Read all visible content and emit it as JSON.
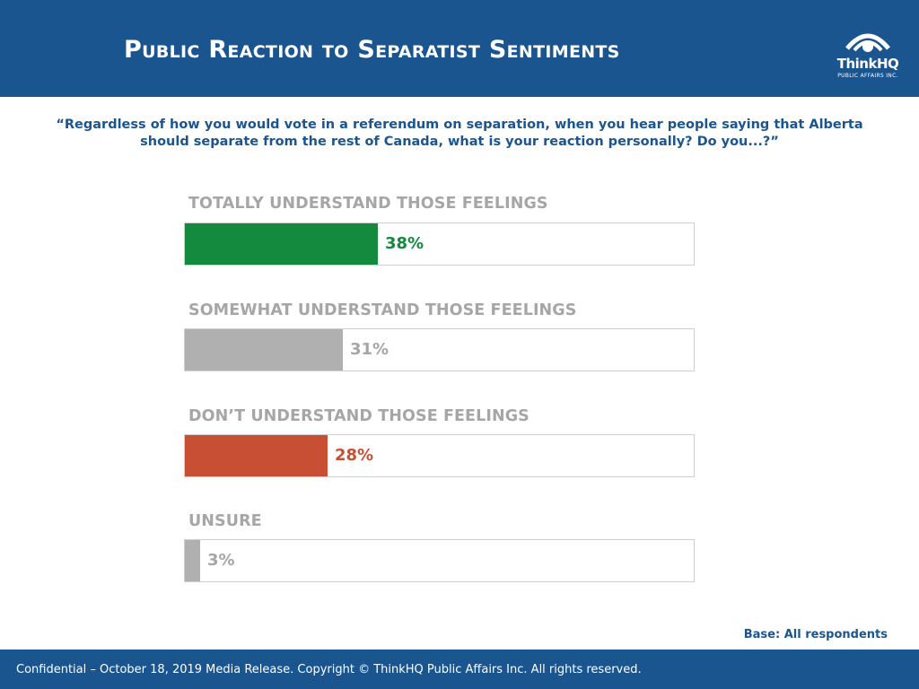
{
  "header": {
    "title": "Public Reaction to Separatist Sentiments",
    "logo_name": "ThinkHQ",
    "logo_sub": "PUBLIC AFFAIRS INC."
  },
  "question": "“Regardless of how you would vote in a referendum on separation, when you hear people saying that Alberta should separate from the rest of Canada, what is your reaction personally? Do you...?”",
  "base": "Base: All respondents",
  "footer": "Confidential – October 18, 2019 Media Release. Copyright © ThinkHQ Public Affairs Inc. All rights reserved.",
  "colors": {
    "header_bg": "#1b5590",
    "totally": "#148a3e",
    "somewhat": "#b0b0b0",
    "dont": "#c84f33",
    "unsure": "#b0b0b0"
  },
  "chart_data": {
    "type": "bar",
    "orientation": "horizontal",
    "xlim": [
      0,
      100
    ],
    "categories": [
      "TOTALLY UNDERSTAND THOSE FEELINGS",
      "SOMEWHAT UNDERSTAND THOSE FEELINGS",
      "DON’T UNDERSTAND THOSE FEELINGS",
      "UNSURE"
    ],
    "values": [
      38,
      31,
      28,
      3
    ],
    "labels": [
      "38%",
      "31%",
      "28%",
      "3%"
    ],
    "bar_colors": [
      "#148a3e",
      "#b0b0b0",
      "#c84f33",
      "#b0b0b0"
    ],
    "label_colors": [
      "#148a3e",
      "#a6a6a6",
      "#c84f33",
      "#a6a6a6"
    ]
  }
}
